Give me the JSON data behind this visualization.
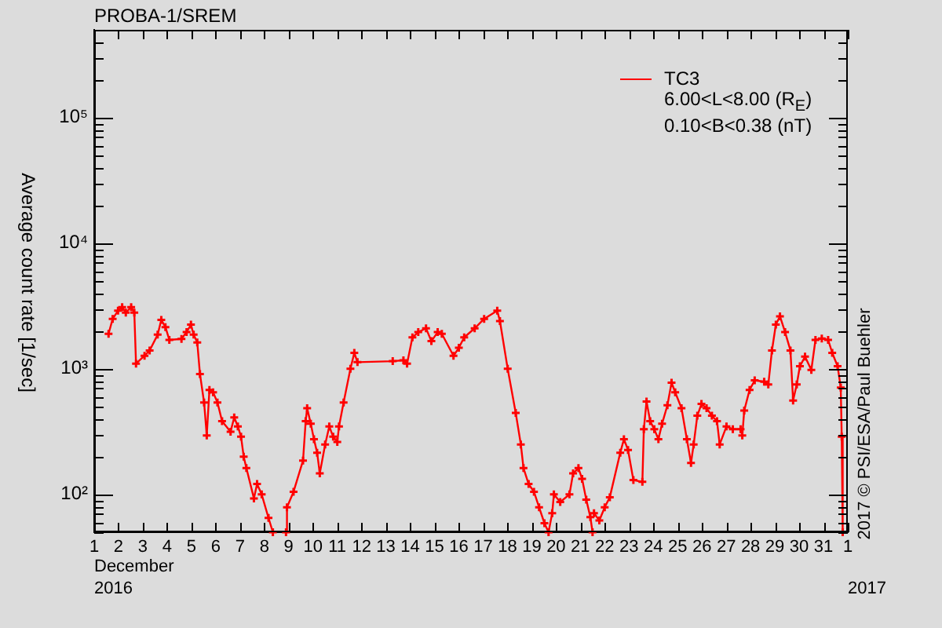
{
  "chart_data": {
    "type": "line",
    "title": "PROBA-1/SREM",
    "xlabel": "December",
    "ylabel": "Average count rate [1/sec]",
    "annotations": [
      "2016",
      "2017",
      "6.00<L<8.00 (R$_{E}$)",
      "0.10<B<0.38 (nT)",
      "2017 © PSI/ESA/Paul Buehler"
    ],
    "log": "y",
    "grid": false,
    "legend": "top right",
    "marker": "cross",
    "line_style": "solid",
    "xlim": [
      "2016-12-01",
      "2017-01-01"
    ],
    "xticks": [
      {
        "value": "2016-12-01",
        "label": "1"
      },
      {
        "value": "2016-12-02",
        "label": "2"
      },
      {
        "value": "2016-12-03",
        "label": "3"
      },
      {
        "value": "2016-12-04",
        "label": "4"
      },
      {
        "value": "2016-12-05",
        "label": "5"
      },
      {
        "value": "2016-12-06",
        "label": "6"
      },
      {
        "value": "2016-12-07",
        "label": "7"
      },
      {
        "value": "2016-12-08",
        "label": "8"
      },
      {
        "value": "2016-12-09",
        "label": "9"
      },
      {
        "value": "2016-12-10",
        "label": "10"
      },
      {
        "value": "2016-12-11",
        "label": "11"
      },
      {
        "value": "2016-12-12",
        "label": "12"
      },
      {
        "value": "2016-12-13",
        "label": "13"
      },
      {
        "value": "2016-12-14",
        "label": "14"
      },
      {
        "value": "2016-12-15",
        "label": "15"
      },
      {
        "value": "2016-12-16",
        "label": "16"
      },
      {
        "value": "2016-12-17",
        "label": "17"
      },
      {
        "value": "2016-12-18",
        "label": "18"
      },
      {
        "value": "2016-12-19",
        "label": "19"
      },
      {
        "value": "2016-12-20",
        "label": "20"
      },
      {
        "value": "2016-12-21",
        "label": "21"
      },
      {
        "value": "2016-12-22",
        "label": "22"
      },
      {
        "value": "2016-12-23",
        "label": "23"
      },
      {
        "value": "2016-12-24",
        "label": "24"
      },
      {
        "value": "2016-12-25",
        "label": "25"
      },
      {
        "value": "2016-12-26",
        "label": "26"
      },
      {
        "value": "2016-12-27",
        "label": "27"
      },
      {
        "value": "2016-12-28",
        "label": "28"
      },
      {
        "value": "2016-12-29",
        "label": "29"
      },
      {
        "value": "2016-12-30",
        "label": "30"
      },
      {
        "value": "2016-12-31",
        "label": "31"
      },
      {
        "value": "2017-01-01",
        "label": "1"
      }
    ],
    "ylim": [
      50,
      500000
    ],
    "yticks": [
      {
        "value": 50,
        "label": null
      },
      {
        "value": 60,
        "label": null
      },
      {
        "value": 70,
        "label": null
      },
      {
        "value": 80,
        "label": null
      },
      {
        "value": 90,
        "label": null
      },
      {
        "value": 100,
        "label": "10²"
      },
      {
        "value": 200,
        "label": null
      },
      {
        "value": 300,
        "label": null
      },
      {
        "value": 400,
        "label": null
      },
      {
        "value": 500,
        "label": null
      },
      {
        "value": 600,
        "label": null
      },
      {
        "value": 700,
        "label": null
      },
      {
        "value": 800,
        "label": null
      },
      {
        "value": 900,
        "label": null
      },
      {
        "value": 1000,
        "label": "10³"
      },
      {
        "value": 2000,
        "label": null
      },
      {
        "value": 3000,
        "label": null
      },
      {
        "value": 4000,
        "label": null
      },
      {
        "value": 5000,
        "label": null
      },
      {
        "value": 6000,
        "label": null
      },
      {
        "value": 7000,
        "label": null
      },
      {
        "value": 8000,
        "label": null
      },
      {
        "value": 9000,
        "label": null
      },
      {
        "value": 10000,
        "label": "10⁴"
      },
      {
        "value": 20000,
        "label": null
      },
      {
        "value": 30000,
        "label": null
      },
      {
        "value": 40000,
        "label": null
      },
      {
        "value": 50000,
        "label": null
      },
      {
        "value": 60000,
        "label": null
      },
      {
        "value": 70000,
        "label": null
      },
      {
        "value": 80000,
        "label": null
      },
      {
        "value": 90000,
        "label": null
      },
      {
        "value": 100000,
        "label": "10⁵"
      },
      {
        "value": 200000,
        "label": null
      },
      {
        "value": 300000,
        "label": null
      },
      {
        "value": 400000,
        "label": null
      },
      {
        "value": 500000,
        "label": null
      }
    ],
    "series": [
      {
        "name": "TC3",
        "color": "#ff0000",
        "x": [
          "2016-12-01T14:10",
          "2016-12-01T18:14",
          "2016-12-01T23:31",
          "2016-12-02T03:36",
          "2016-12-02T07:12",
          "2016-12-02T12:29",
          "2016-12-02T15:36",
          "2016-12-02T17:17",
          "2016-12-03T01:41",
          "2016-12-03T06:43",
          "2016-12-03T14:38",
          "2016-12-03T18:14",
          "2016-12-03T22:19",
          "2016-12-04T02:10",
          "2016-12-04T14:10",
          "2016-12-04T19:12",
          "2016-12-04T23:31",
          "2016-12-05T02:10",
          "2016-12-05T05:46",
          "2016-12-05T08:24",
          "2016-12-05T12:29",
          "2016-12-05T15:07",
          "2016-12-05T17:46",
          "2016-12-05T21:22",
          "2016-12-06T01:41",
          "2016-12-06T06:14",
          "2016-12-06T14:38",
          "2016-12-06T18:14",
          "2016-12-06T21:50",
          "2016-12-07T00:58",
          "2016-12-07T03:36",
          "2016-12-07T06:14",
          "2016-12-07T13:41",
          "2016-12-07T16:48",
          "2016-12-07T21:22",
          "2016-12-08T04:05",
          "2016-12-08T08:24",
          "2016-12-08T14:24",
          "2016-12-08T21:22",
          "2016-12-08T22:19",
          "2016-12-09T04:48",
          "2016-12-09T14:10",
          "2016-12-09T16:48",
          "2016-12-09T18:14",
          "2016-12-09T21:50",
          "2016-12-10T00:58",
          "2016-12-10T04:05",
          "2016-12-10T06:43",
          "2016-12-10T12:00",
          "2016-12-10T16:05",
          "2016-12-10T19:55",
          "2016-12-11T00:00",
          "2016-12-11T01:41",
          "2016-12-11T06:14",
          "2016-12-11T12:58",
          "2016-12-11T16:48",
          "2016-12-11T19:55",
          "2016-12-13T06:43",
          "2016-12-13T17:17",
          "2016-12-13T20:53",
          "2016-12-14T02:10",
          "2016-12-14T07:55",
          "2016-12-14T15:36",
          "2016-12-14T20:53",
          "2016-12-15T03:07",
          "2016-12-15T07:12",
          "2016-12-15T18:43",
          "2016-12-16T00:00",
          "2016-12-16T05:17",
          "2016-12-16T15:36",
          "2016-12-17T00:58",
          "2016-12-17T13:55",
          "2016-12-17T16:34",
          "2016-12-18T00:14",
          "2016-12-18T08:10",
          "2016-12-18T13:12",
          "2016-12-18T15:50",
          "2016-12-18T20:53",
          "2016-12-19T02:10",
          "2016-12-19T07:12",
          "2016-12-19T12:29",
          "2016-12-19T16:34",
          "2016-12-19T20:10",
          "2016-12-19T21:50",
          "2016-12-20T04:05",
          "2016-12-20T13:12",
          "2016-12-20T16:48",
          "2016-12-20T22:05",
          "2016-12-21T01:41",
          "2016-12-21T05:46",
          "2016-12-21T09:50",
          "2016-12-21T12:00",
          "2016-12-21T12:43",
          "2016-12-21T13:26",
          "2016-12-21T18:43",
          "2016-12-22T00:00",
          "2016-12-22T05:02",
          "2016-12-22T15:22",
          "2016-12-22T18:58",
          "2016-12-22T23:02",
          "2016-12-23T04:19",
          "2016-12-23T13:12",
          "2016-12-23T14:38",
          "2016-12-23T17:17",
          "2016-12-23T20:53",
          "2016-12-24T00:58",
          "2016-12-24T05:02",
          "2016-12-24T08:38",
          "2016-12-24T13:55",
          "2016-12-24T18:00",
          "2016-12-24T21:36",
          "2016-12-25T03:50",
          "2016-12-25T09:07",
          "2016-12-25T13:12",
          "2016-12-25T15:50",
          "2016-12-25T19:26",
          "2016-12-25T23:31",
          "2016-12-26T04:34",
          "2016-12-26T09:50",
          "2016-12-26T14:53",
          "2016-12-26T17:31",
          "2016-12-27T00:14",
          "2016-12-27T06:29",
          "2016-12-27T14:10",
          "2016-12-27T15:50",
          "2016-12-27T17:46",
          "2016-12-27T23:02",
          "2016-12-28T04:05",
          "2016-12-28T13:26",
          "2016-12-28T17:31",
          "2016-12-28T21:07",
          "2016-12-29T00:58",
          "2016-12-29T05:02",
          "2016-12-29T10:05",
          "2016-12-29T15:22",
          "2016-12-29T18:00",
          "2016-12-29T21:36",
          "2016-12-30T00:43",
          "2016-12-30T05:46",
          "2016-12-30T12:00",
          "2016-12-30T16:05",
          "2016-12-30T22:19",
          "2016-12-31T04:34",
          "2016-12-31T08:38",
          "2016-12-31T13:55",
          "2016-12-31T17:02",
          "2016-12-31T18:00",
          "2016-12-31T18:58"
        ],
        "values": [
          1900,
          2500,
          2900,
          3100,
          2800,
          3100,
          2800,
          1100,
          1270,
          1400,
          1870,
          2450,
          2150,
          1700,
          1730,
          1960,
          2250,
          1870,
          1620,
          910,
          540,
          295,
          680,
          650,
          540,
          383,
          316,
          410,
          348,
          288,
          200,
          162,
          93,
          121,
          100,
          65,
          50,
          null,
          50,
          79,
          105,
          186,
          383,
          486,
          365,
          275,
          215,
          147,
          250,
          348,
          288,
          262,
          348,
          540,
          1000,
          1340,
          1130,
          1150,
          1170,
          1100,
          1780,
          1960,
          2100,
          1660,
          1960,
          1900,
          1270,
          1470,
          1780,
          2100,
          2500,
          2900,
          2400,
          1000,
          445,
          250,
          162,
          121,
          105,
          79,
          59,
          50,
          71,
          100,
          87,
          100,
          147,
          162,
          133,
          91,
          66,
          50,
          null,
          71,
          62,
          79,
          95,
          215,
          275,
          226,
          130,
          126,
          330,
          550,
          383,
          330,
          275,
          365,
          513,
          776,
          650,
          486,
          275,
          178,
          250,
          423,
          525,
          486,
          423,
          383,
          250,
          348,
          330,
          330,
          295,
          466,
          680,
          810,
          790,
          750,
          1400,
          2250,
          2620,
          1960,
          1400,
          560,
          750,
          1050,
          1250,
          980,
          1700,
          1740,
          1700,
          1340,
          1050,
          710,
          288,
          50
        ]
      }
    ]
  }
}
